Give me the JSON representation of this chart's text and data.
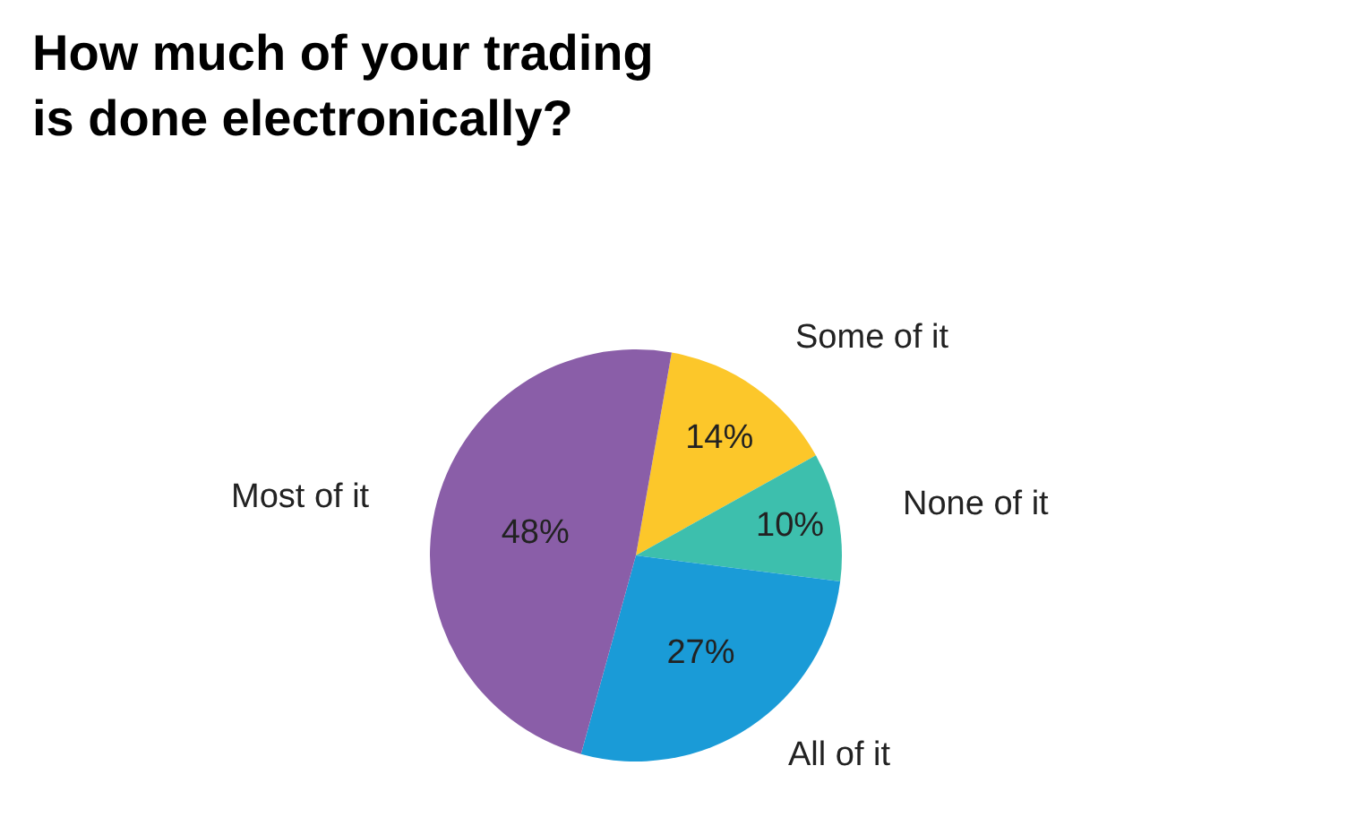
{
  "chart_data": {
    "type": "pie",
    "title": "How much of your trading\nis done electronically?",
    "categories": [
      "Some of it",
      "None of it",
      "All of it",
      "Most of it"
    ],
    "values": [
      14,
      10,
      27,
      48
    ],
    "value_labels": [
      "14%",
      "10%",
      "27%",
      "48%"
    ],
    "colors": [
      "#fcc72a",
      "#3dbfad",
      "#1a9bd7",
      "#8a5ea8"
    ],
    "legend": false
  }
}
